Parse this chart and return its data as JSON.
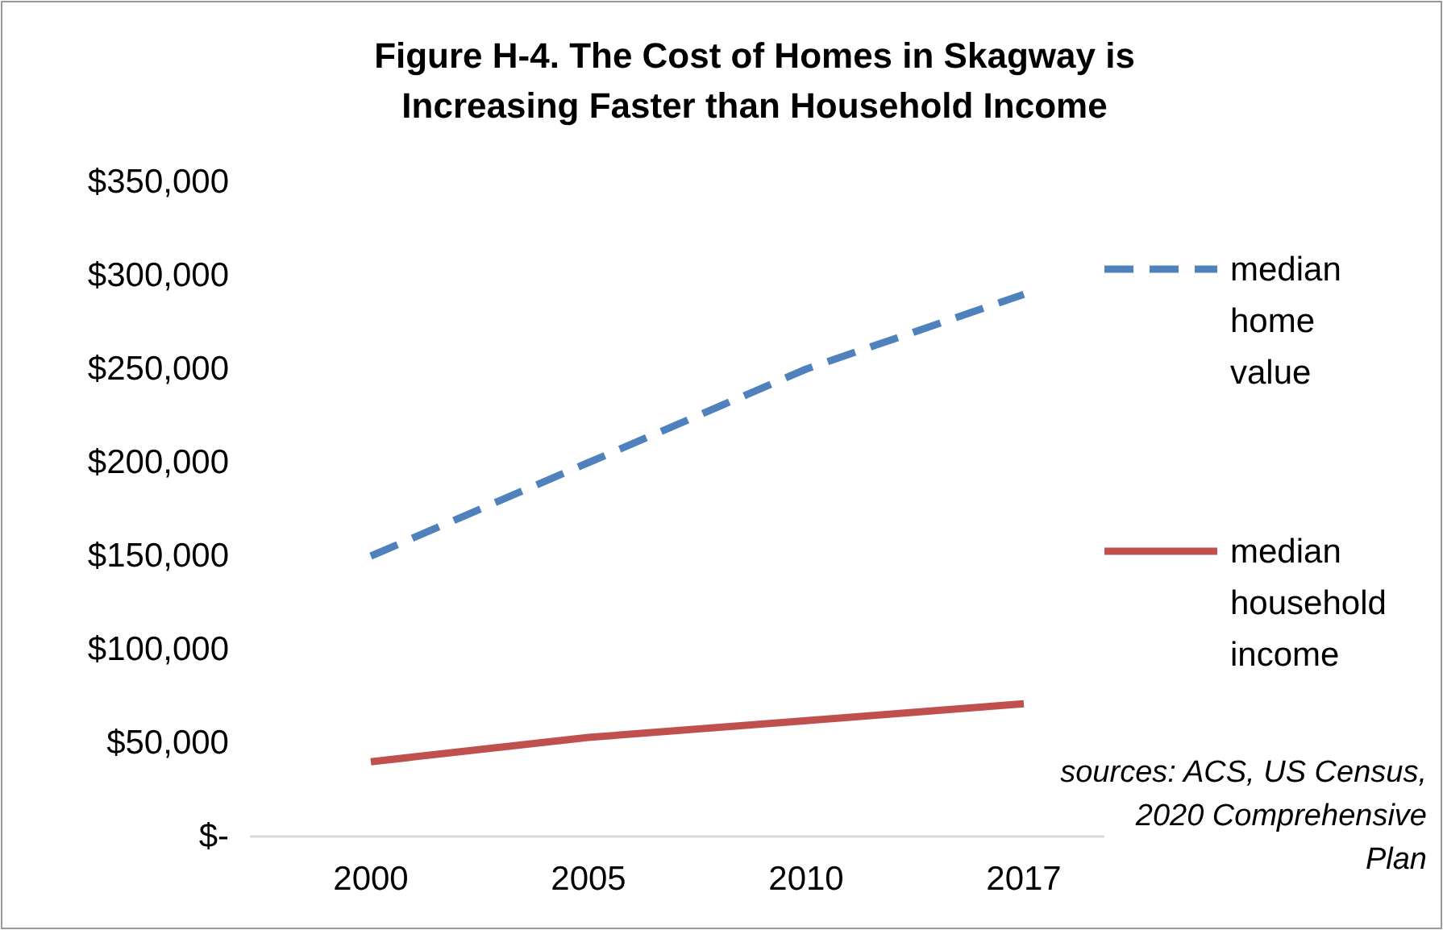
{
  "chart_data": {
    "type": "line",
    "title": "Figure H-4. The Cost of Homes in Skagway is Increasing Faster than Household Income",
    "categories": [
      "2000",
      "2005",
      "2010",
      "2017"
    ],
    "series": [
      {
        "name": "median home value",
        "color": "#4f81bd",
        "line_style": "dashed",
        "values": [
          150000,
          200000,
          250000,
          290000
        ]
      },
      {
        "name": "median household income",
        "color": "#c0504d",
        "line_style": "solid",
        "values": [
          40000,
          53000,
          62000,
          71000
        ]
      }
    ],
    "ylim": [
      0,
      350000
    ],
    "yticks": [
      {
        "value": 0,
        "label": "$-"
      },
      {
        "value": 50000,
        "label": "$50,000"
      },
      {
        "value": 100000,
        "label": "$100,000"
      },
      {
        "value": 150000,
        "label": "$150,000"
      },
      {
        "value": 200000,
        "label": "$200,000"
      },
      {
        "value": 250000,
        "label": "$250,000"
      },
      {
        "value": 300000,
        "label": "$300,000"
      },
      {
        "value": 350000,
        "label": "$350,000"
      }
    ],
    "grid": false,
    "legend": "right",
    "marker": "none",
    "annotations": [
      "sources: ACS, US Census, 2020 Comprehensive Plan"
    ]
  }
}
